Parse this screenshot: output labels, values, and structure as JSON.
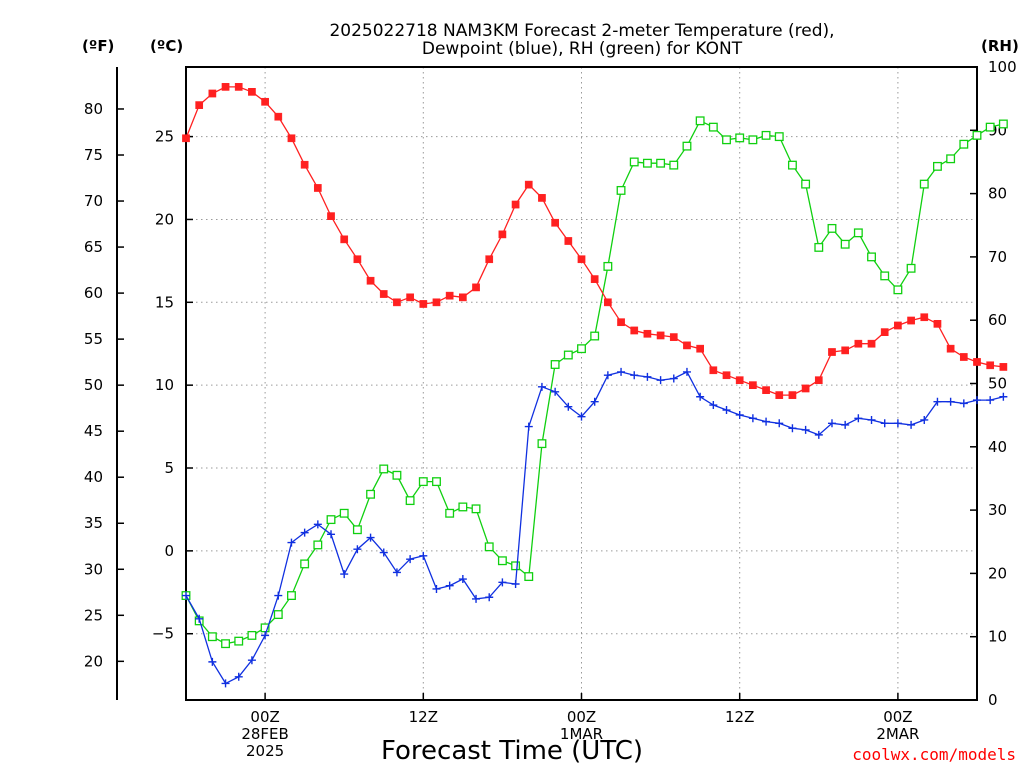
{
  "chart_data": {
    "type": "line",
    "title_line1": "2025022718 NAM3KM Forecast 2-meter Temperature (red),",
    "title_line2": "Dewpoint (blue), RH (green) for KONT",
    "xlabel": "Forecast Time (UTC)",
    "credit": "coolwx.com/models",
    "units": {
      "f": "(ºF)",
      "c": "(ºC)",
      "rh": "(RH)"
    },
    "x_ticks": [
      {
        "h": 24,
        "lines": [
          "00Z",
          "28FEB",
          "2025"
        ]
      },
      {
        "h": 36,
        "lines": [
          "12Z"
        ]
      },
      {
        "h": 48,
        "lines": [
          "00Z",
          "1MAR"
        ]
      },
      {
        "h": 60,
        "lines": [
          "12Z"
        ]
      },
      {
        "h": 72,
        "lines": [
          "00Z",
          "2MAR"
        ]
      }
    ],
    "x_range": [
      18,
      78
    ],
    "c_range": [
      -9,
      29.2
    ],
    "c_ticks": [
      -5,
      0,
      5,
      10,
      15,
      20,
      25
    ],
    "f_ticks": [
      20,
      25,
      30,
      35,
      40,
      45,
      50,
      55,
      60,
      65,
      70,
      75,
      80
    ],
    "rh_range": [
      0,
      100
    ],
    "rh_ticks": [
      0,
      10,
      20,
      30,
      40,
      50,
      60,
      70,
      80,
      90,
      100
    ],
    "gridlines": true,
    "colors": {
      "temperature": "#ff2020",
      "dewpoint": "#1030e0",
      "rh": "#10d010"
    },
    "temperature_c": [
      24.9,
      26.9,
      27.6,
      28.0,
      28.0,
      27.7,
      27.1,
      26.2,
      24.9,
      23.3,
      21.9,
      20.2,
      18.8,
      17.6,
      16.3,
      15.5,
      15.0,
      15.3,
      14.9,
      15.0,
      15.4,
      15.3,
      15.9,
      17.6,
      19.1,
      20.9,
      22.1,
      21.3,
      19.8,
      18.7,
      17.6,
      16.4,
      15.0,
      13.8,
      13.3,
      13.1,
      13.0,
      12.9,
      12.4,
      12.2,
      10.9,
      10.6,
      10.3,
      10.0,
      9.7,
      9.4,
      9.4,
      9.8,
      10.3,
      12.0,
      12.1,
      12.5,
      12.5,
      13.2,
      13.6,
      13.9,
      14.1,
      13.7,
      12.2,
      11.7,
      11.4,
      11.2,
      11.1
    ],
    "dewpoint_c": [
      -2.7,
      -4.1,
      -6.7,
      -8.0,
      -7.6,
      -6.6,
      -5.1,
      -2.7,
      0.5,
      1.1,
      1.6,
      1.0,
      -1.4,
      0.1,
      0.8,
      -0.1,
      -1.3,
      -0.5,
      -0.3,
      -2.3,
      -2.1,
      -1.7,
      -2.9,
      -2.8,
      -1.9,
      -2.0,
      7.5,
      9.9,
      9.6,
      8.7,
      8.1,
      9.0,
      10.6,
      10.8,
      10.6,
      10.5,
      10.3,
      10.4,
      10.8,
      9.3,
      8.8,
      8.5,
      8.2,
      8.0,
      7.8,
      7.7,
      7.4,
      7.3,
      7.0,
      7.7,
      7.6,
      8.0,
      7.9,
      7.7,
      7.7,
      7.6,
      7.9,
      9.0,
      9.0,
      8.9,
      9.1,
      9.1,
      9.3
    ],
    "rh_pct": [
      16.5,
      12.5,
      10.0,
      8.9,
      9.3,
      10.2,
      11.4,
      13.5,
      16.5,
      21.5,
      24.5,
      28.5,
      29.5,
      26.9,
      32.5,
      36.5,
      35.5,
      31.5,
      34.5,
      34.5,
      29.5,
      30.5,
      30.2,
      24.2,
      22.0,
      21.2,
      19.5,
      40.5,
      53.0,
      54.5,
      55.5,
      57.5,
      68.5,
      80.5,
      85.0,
      84.8,
      84.8,
      84.5,
      87.5,
      91.5,
      90.5,
      88.5,
      88.8,
      88.5,
      89.2,
      89.0,
      84.5,
      81.5,
      71.5,
      74.5,
      72.0,
      73.8,
      70.0,
      67.0,
      64.8,
      68.2,
      81.5,
      84.3,
      85.5,
      87.8,
      89.2,
      90.5,
      91.0
    ]
  }
}
